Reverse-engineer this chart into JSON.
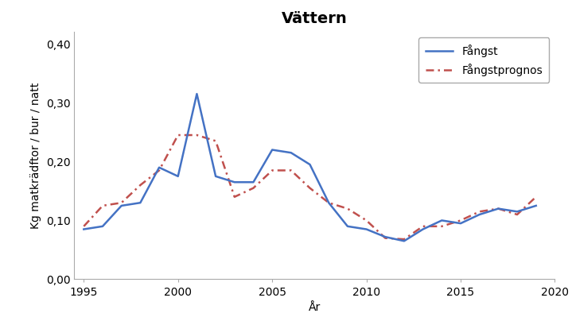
{
  "title": "Vättern",
  "xlabel": "År",
  "ylabel": "Kg matkrädftor / bur / natt",
  "xlim": [
    1994.5,
    2020
  ],
  "ylim": [
    0.0,
    0.42
  ],
  "yticks": [
    0.0,
    0.1,
    0.2,
    0.3,
    0.4
  ],
  "xticks": [
    1995,
    2000,
    2005,
    2010,
    2015,
    2020
  ],
  "fangst_years": [
    1995,
    1996,
    1997,
    1998,
    1999,
    2000,
    2001,
    2002,
    2003,
    2004,
    2005,
    2006,
    2007,
    2008,
    2009,
    2010,
    2011,
    2012,
    2013,
    2014,
    2015,
    2016,
    2017,
    2018,
    2019
  ],
  "fangst_values": [
    0.085,
    0.09,
    0.125,
    0.13,
    0.19,
    0.175,
    0.315,
    0.175,
    0.165,
    0.165,
    0.22,
    0.215,
    0.195,
    0.13,
    0.09,
    0.085,
    0.072,
    0.065,
    0.085,
    0.1,
    0.095,
    0.11,
    0.12,
    0.115,
    0.125
  ],
  "prognos_years": [
    1995,
    1996,
    1997,
    1998,
    1999,
    2000,
    2001,
    2002,
    2003,
    2004,
    2005,
    2006,
    2007,
    2008,
    2009,
    2010,
    2011,
    2012,
    2013,
    2014,
    2015,
    2016,
    2017,
    2018,
    2019
  ],
  "prognos_values": [
    0.09,
    0.125,
    0.13,
    0.16,
    0.185,
    0.245,
    0.245,
    0.235,
    0.14,
    0.155,
    0.185,
    0.185,
    0.155,
    0.13,
    0.12,
    0.1,
    0.07,
    0.068,
    0.09,
    0.09,
    0.1,
    0.115,
    0.12,
    0.11,
    0.14
  ],
  "fangst_color": "#4472C4",
  "prognos_color": "#C0504D",
  "fangst_label": "Fångst",
  "prognos_label": "Fångstprognos",
  "background_color": "#ffffff",
  "title_fontsize": 14,
  "label_fontsize": 10,
  "tick_fontsize": 10
}
